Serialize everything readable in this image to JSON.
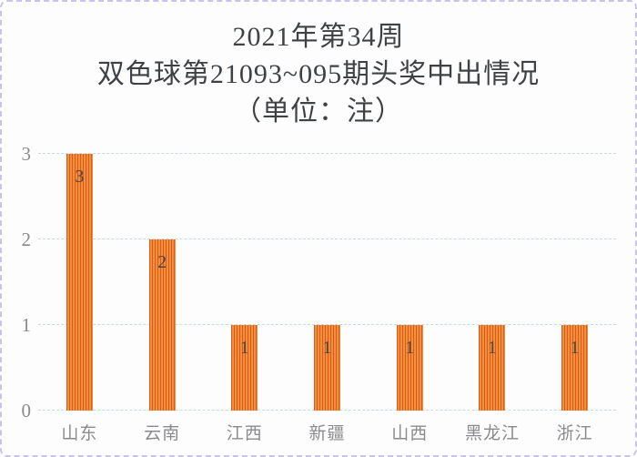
{
  "title": {
    "lines": [
      "2021年第34周",
      "双色球第21093~095期头奖中出情况",
      "（单位：注）"
    ]
  },
  "chart_data": {
    "type": "bar",
    "title": "2021年第34周 双色球第21093~095期头奖中出情况（单位：注）",
    "categories": [
      "山东",
      "云南",
      "江西",
      "新疆",
      "山西",
      "黑龙江",
      "浙江"
    ],
    "values": [
      3,
      2,
      1,
      1,
      1,
      1,
      1
    ],
    "value_labels": [
      "3",
      "2",
      "1",
      "1",
      "1",
      "1",
      "1"
    ],
    "xlabel": "",
    "ylabel": "",
    "yticks": [
      0,
      1,
      2,
      3
    ],
    "ylim": [
      0,
      3
    ],
    "grid": "horizontal-dashed",
    "legend": "none",
    "colors": {
      "bar_fill": "#f0913a",
      "bar_stripe": "#de5620",
      "value_label": "#4b4742",
      "axis_label": "#8b8b8e",
      "gridline": "#c5daea",
      "title_text": "#3f4245",
      "page_border": "#c9c3ea",
      "background": "#fdfdfe"
    }
  }
}
